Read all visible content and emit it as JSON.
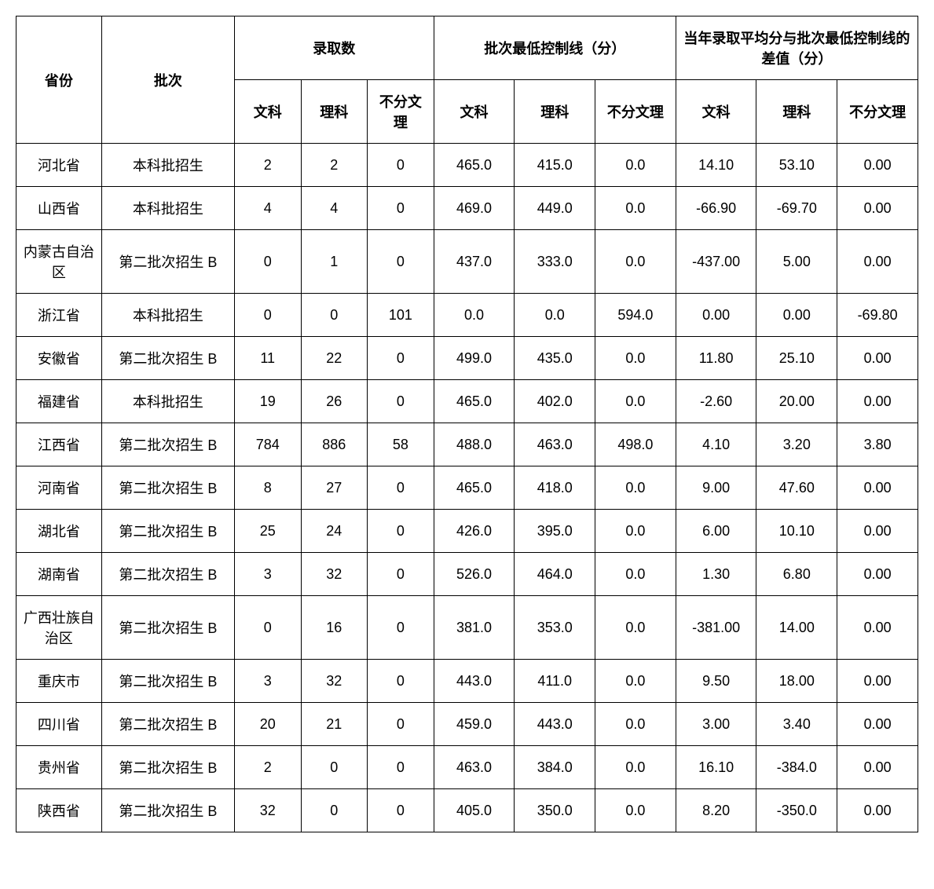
{
  "headers": {
    "province": "省份",
    "batch": "批次",
    "admission_count": "录取数",
    "min_control_line": "批次最低控制线（分）",
    "avg_diff": "当年录取平均分与批次最低控制线的差值（分）",
    "liberal_arts": "文科",
    "science": "理科",
    "undivided": "不分文理",
    "undivided_short": "不分文理"
  },
  "rows": [
    {
      "province": "河北省",
      "batch": "本科批招生",
      "admit_la": "2",
      "admit_sc": "2",
      "admit_un": "0",
      "line_la": "465.0",
      "line_sc": "415.0",
      "line_un": "0.0",
      "diff_la": "14.10",
      "diff_sc": "53.10",
      "diff_un": "0.00"
    },
    {
      "province": "山西省",
      "batch": "本科批招生",
      "admit_la": "4",
      "admit_sc": "4",
      "admit_un": "0",
      "line_la": "469.0",
      "line_sc": "449.0",
      "line_un": "0.0",
      "diff_la": "-66.90",
      "diff_sc": "-69.70",
      "diff_un": "0.00"
    },
    {
      "province": "内蒙古自治区",
      "batch": "第二批次招生 B",
      "admit_la": "0",
      "admit_sc": "1",
      "admit_un": "0",
      "line_la": "437.0",
      "line_sc": "333.0",
      "line_un": "0.0",
      "diff_la": "-437.00",
      "diff_sc": "5.00",
      "diff_un": "0.00"
    },
    {
      "province": "浙江省",
      "batch": "本科批招生",
      "admit_la": "0",
      "admit_sc": "0",
      "admit_un": "101",
      "line_la": "0.0",
      "line_sc": "0.0",
      "line_un": "594.0",
      "diff_la": "0.00",
      "diff_sc": "0.00",
      "diff_un": "-69.80"
    },
    {
      "province": "安徽省",
      "batch": "第二批次招生 B",
      "admit_la": "11",
      "admit_sc": "22",
      "admit_un": "0",
      "line_la": "499.0",
      "line_sc": "435.0",
      "line_un": "0.0",
      "diff_la": "11.80",
      "diff_sc": "25.10",
      "diff_un": "0.00"
    },
    {
      "province": "福建省",
      "batch": "本科批招生",
      "admit_la": "19",
      "admit_sc": "26",
      "admit_un": "0",
      "line_la": "465.0",
      "line_sc": "402.0",
      "line_un": "0.0",
      "diff_la": "-2.60",
      "diff_sc": "20.00",
      "diff_un": "0.00"
    },
    {
      "province": "江西省",
      "batch": "第二批次招生 B",
      "admit_la": "784",
      "admit_sc": "886",
      "admit_un": "58",
      "line_la": "488.0",
      "line_sc": "463.0",
      "line_un": "498.0",
      "diff_la": "4.10",
      "diff_sc": "3.20",
      "diff_un": "3.80"
    },
    {
      "province": "河南省",
      "batch": "第二批次招生 B",
      "admit_la": "8",
      "admit_sc": "27",
      "admit_un": "0",
      "line_la": "465.0",
      "line_sc": "418.0",
      "line_un": "0.0",
      "diff_la": "9.00",
      "diff_sc": "47.60",
      "diff_un": "0.00"
    },
    {
      "province": "湖北省",
      "batch": "第二批次招生 B",
      "admit_la": "25",
      "admit_sc": "24",
      "admit_un": "0",
      "line_la": "426.0",
      "line_sc": "395.0",
      "line_un": "0.0",
      "diff_la": "6.00",
      "diff_sc": "10.10",
      "diff_un": "0.00"
    },
    {
      "province": "湖南省",
      "batch": "第二批次招生 B",
      "admit_la": "3",
      "admit_sc": "32",
      "admit_un": "0",
      "line_la": "526.0",
      "line_sc": "464.0",
      "line_un": "0.0",
      "diff_la": "1.30",
      "diff_sc": "6.80",
      "diff_un": "0.00"
    },
    {
      "province": "广西壮族自治区",
      "batch": "第二批次招生 B",
      "admit_la": "0",
      "admit_sc": "16",
      "admit_un": "0",
      "line_la": "381.0",
      "line_sc": "353.0",
      "line_un": "0.0",
      "diff_la": "-381.00",
      "diff_sc": "14.00",
      "diff_un": "0.00"
    },
    {
      "province": "重庆市",
      "batch": "第二批次招生 B",
      "admit_la": "3",
      "admit_sc": "32",
      "admit_un": "0",
      "line_la": "443.0",
      "line_sc": "411.0",
      "line_un": "0.0",
      "diff_la": "9.50",
      "diff_sc": "18.00",
      "diff_un": "0.00"
    },
    {
      "province": "四川省",
      "batch": "第二批次招生 B",
      "admit_la": "20",
      "admit_sc": "21",
      "admit_un": "0",
      "line_la": "459.0",
      "line_sc": "443.0",
      "line_un": "0.0",
      "diff_la": "3.00",
      "diff_sc": "3.40",
      "diff_un": "0.00"
    },
    {
      "province": "贵州省",
      "batch": "第二批次招生 B",
      "admit_la": "2",
      "admit_sc": "0",
      "admit_un": "0",
      "line_la": "463.0",
      "line_sc": "384.0",
      "line_un": "0.0",
      "diff_la": "16.10",
      "diff_sc": "-384.0",
      "diff_un": "0.00"
    },
    {
      "province": "陕西省",
      "batch": "第二批次招生 B",
      "admit_la": "32",
      "admit_sc": "0",
      "admit_un": "0",
      "line_la": "405.0",
      "line_sc": "350.0",
      "line_un": "0.0",
      "diff_la": "8.20",
      "diff_sc": "-350.0",
      "diff_un": "0.00"
    }
  ],
  "style": {
    "border_color": "#000000",
    "background_color": "#ffffff",
    "font_size": 18,
    "header_font_weight": "bold"
  }
}
